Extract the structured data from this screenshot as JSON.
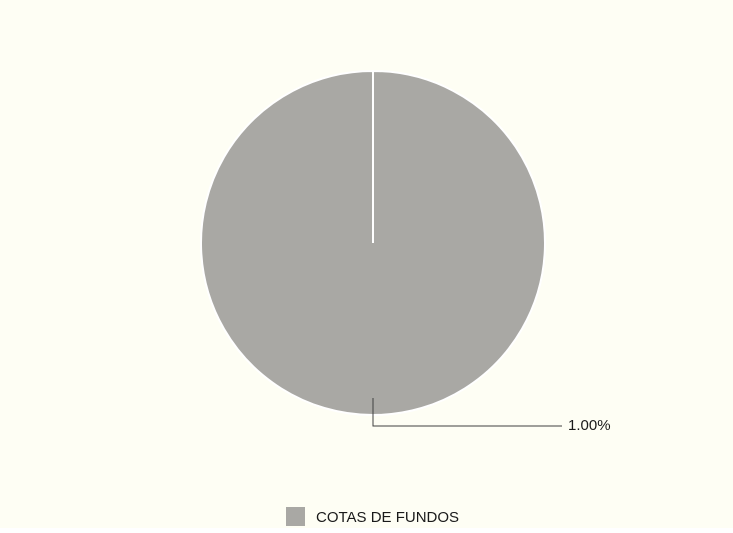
{
  "chart_data": {
    "type": "pie",
    "title": "",
    "slices": [
      {
        "name": "COTAS DE FUNDOS",
        "value": 1.0,
        "label": "1.00%",
        "color": "#a9a8a4"
      }
    ],
    "legend": {
      "placement": "bottom",
      "entries": [
        "COTAS DE FUNDOS"
      ]
    },
    "background_color": "#fefef4"
  }
}
